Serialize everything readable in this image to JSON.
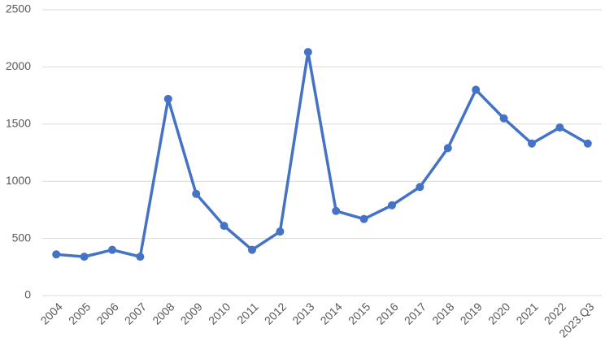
{
  "chart_data": {
    "type": "line",
    "categories": [
      "2004",
      "2005",
      "2006",
      "2007",
      "2008",
      "2009",
      "2010",
      "2011",
      "2012",
      "2013",
      "2014",
      "2015",
      "2016",
      "2017",
      "2018",
      "2019",
      "2020",
      "2021",
      "2022",
      "2023.Q3"
    ],
    "series": [
      {
        "color": "#4472c4",
        "values": [
          360,
          340,
          400,
          340,
          1720,
          890,
          610,
          400,
          560,
          2130,
          740,
          670,
          790,
          950,
          1290,
          1800,
          1550,
          1330,
          1470,
          1330
        ]
      }
    ],
    "ylim": [
      0,
      2500
    ],
    "yticks": [
      0,
      500,
      1000,
      1500,
      2000,
      2500
    ],
    "grid": true
  }
}
